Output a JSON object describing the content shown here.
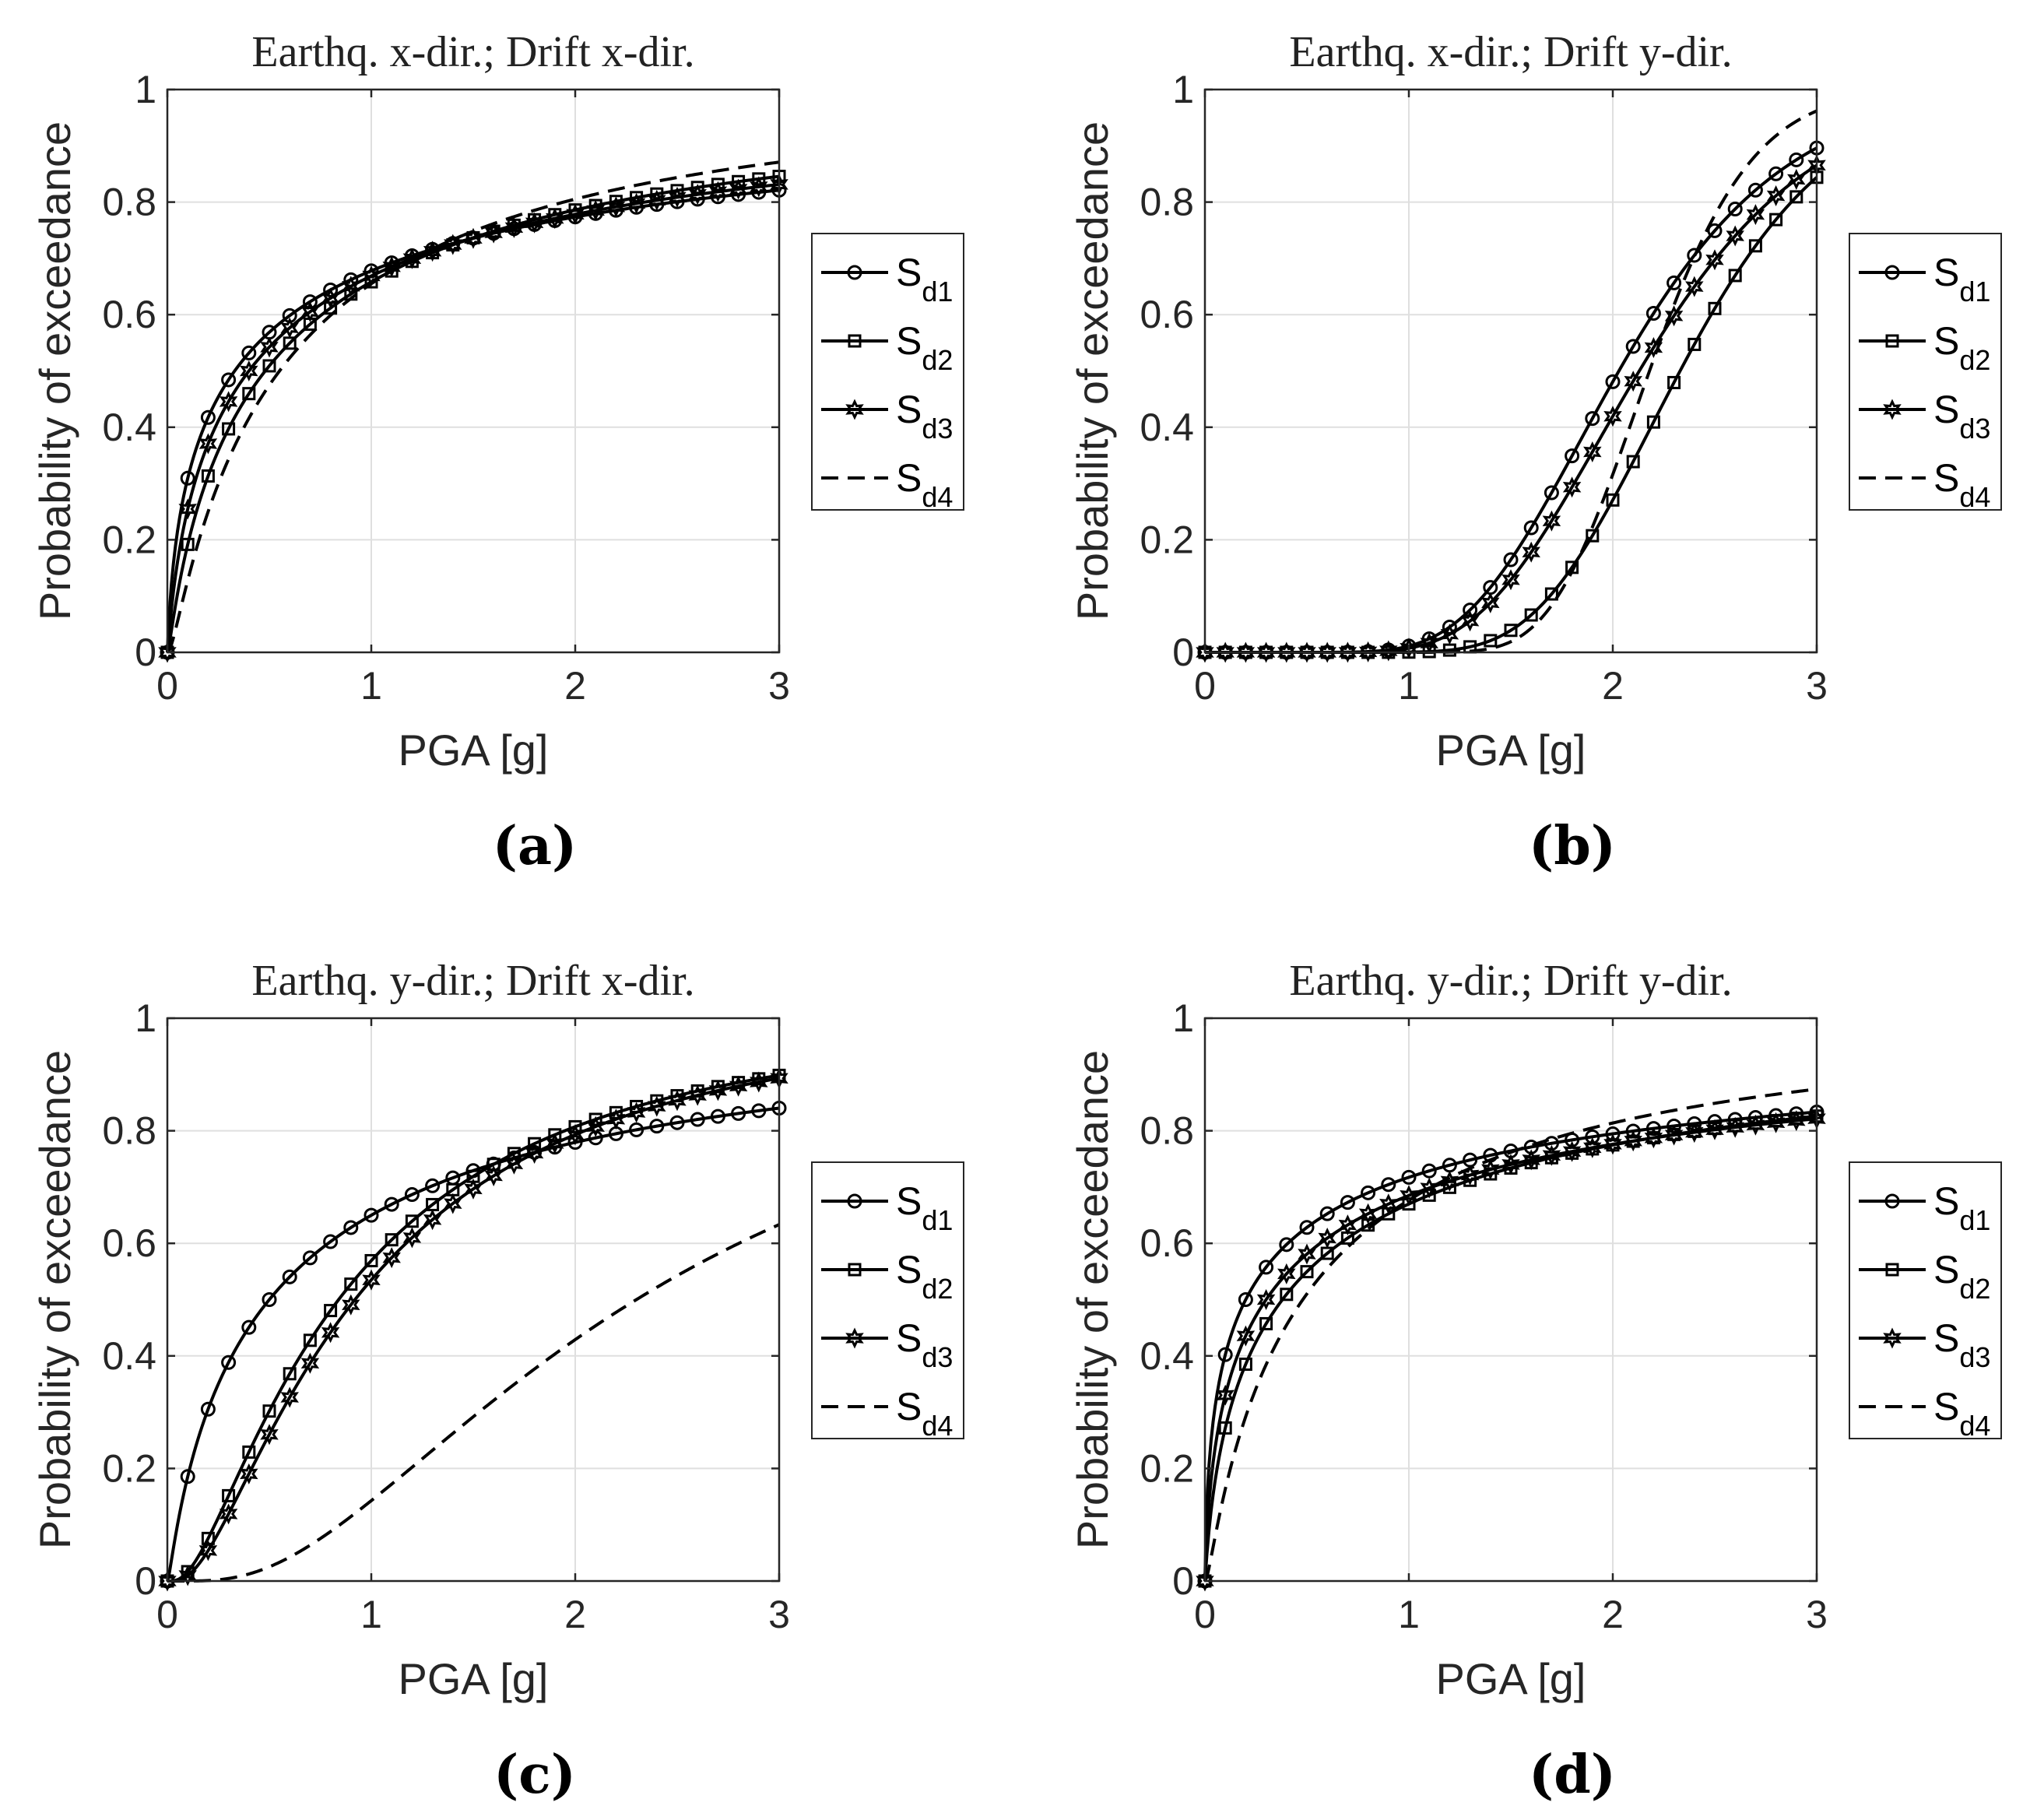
{
  "figure": {
    "panel_captions": [
      "(a)",
      "(b)",
      "(c)",
      "(d)"
    ]
  },
  "chart_data": [
    {
      "type": "line",
      "panel": "(a)",
      "title": "Earthq. x-dir.; Drift x-dir.",
      "xlabel": "PGA [g]",
      "ylabel": "Probability of exceedance",
      "xlim": [
        0,
        3
      ],
      "ylim": [
        0,
        1
      ],
      "xticks": [
        0,
        1,
        2,
        3
      ],
      "yticks": [
        0,
        0.2,
        0.4,
        0.6,
        0.8,
        1
      ],
      "xtick_labels": [
        "0",
        "1",
        "2",
        "3"
      ],
      "ytick_labels": [
        "0",
        "0.2",
        "0.4",
        "0.6",
        "0.8",
        "1"
      ],
      "grid": true,
      "legend_position": "right-outside",
      "series": [
        {
          "name": "S",
          "sub": "d1",
          "marker": "circle",
          "dash": "solid",
          "model": {
            "kind": "lognormal",
            "median": 0.33,
            "beta": 2.4
          }
        },
        {
          "name": "S",
          "sub": "d2",
          "marker": "square",
          "dash": "solid",
          "model": {
            "kind": "lognormal",
            "median": 0.48,
            "beta": 1.8
          }
        },
        {
          "name": "S",
          "sub": "d3",
          "marker": "hexagram",
          "dash": "solid",
          "model": {
            "kind": "lognormal",
            "median": 0.4,
            "beta": 2.1
          }
        },
        {
          "name": "S",
          "sub": "d4",
          "marker": "none",
          "dash": "dashed",
          "model": {
            "kind": "lognormal",
            "median": 0.55,
            "beta": 1.5
          }
        }
      ]
    },
    {
      "type": "line",
      "panel": "(b)",
      "title": "Earthq. x-dir.; Drift y-dir.",
      "xlabel": "PGA [g]",
      "ylabel": "Probability of exceedance",
      "xlim": [
        0,
        3
      ],
      "ylim": [
        0,
        1
      ],
      "xticks": [
        0,
        1,
        2,
        3
      ],
      "yticks": [
        0,
        0.2,
        0.4,
        0.6,
        0.8,
        1
      ],
      "xtick_labels": [
        "0",
        "1",
        "2",
        "3"
      ],
      "ytick_labels": [
        "0",
        "0.2",
        "0.4",
        "0.6",
        "0.8",
        "1"
      ],
      "grid": true,
      "legend_position": "right-outside",
      "series": [
        {
          "name": "S",
          "sub": "d1",
          "marker": "circle",
          "dash": "solid",
          "model": {
            "kind": "lognormal",
            "median": 2.03,
            "beta": 0.31
          }
        },
        {
          "name": "S",
          "sub": "d2",
          "marker": "square",
          "dash": "solid",
          "model": {
            "kind": "lognormal",
            "median": 2.33,
            "beta": 0.25
          }
        },
        {
          "name": "S",
          "sub": "d3",
          "marker": "hexagram",
          "dash": "solid",
          "model": {
            "kind": "lognormal",
            "median": 2.13,
            "beta": 0.31
          }
        },
        {
          "name": "S",
          "sub": "d4",
          "marker": "none",
          "dash": "dashed",
          "model": {
            "kind": "lognormal",
            "median": 2.18,
            "beta": 0.18
          }
        }
      ]
    },
    {
      "type": "line",
      "panel": "(c)",
      "title": "Earthq. y-dir.; Drift x-dir.",
      "xlabel": "PGA [g]",
      "ylabel": "Probability of exceedance",
      "xlim": [
        0,
        3
      ],
      "ylim": [
        0,
        1
      ],
      "xticks": [
        0,
        1,
        2,
        3
      ],
      "yticks": [
        0,
        0.2,
        0.4,
        0.6,
        0.8,
        1
      ],
      "xtick_labels": [
        "0",
        "1",
        "2",
        "3"
      ],
      "ytick_labels": [
        "0",
        "0.2",
        "0.4",
        "0.6",
        "0.8",
        "1"
      ],
      "grid": true,
      "legend_position": "right-outside",
      "series": [
        {
          "name": "S",
          "sub": "d1",
          "marker": "circle",
          "dash": "solid",
          "model": {
            "kind": "lognormal",
            "median": 0.5,
            "beta": 1.8
          }
        },
        {
          "name": "S",
          "sub": "d2",
          "marker": "square",
          "dash": "solid",
          "model": {
            "kind": "lognormal",
            "median": 0.84,
            "beta": 1.0
          }
        },
        {
          "name": "S",
          "sub": "d3",
          "marker": "hexagram",
          "dash": "solid",
          "model": {
            "kind": "lognormal",
            "median": 0.92,
            "beta": 0.95
          }
        },
        {
          "name": "S",
          "sub": "d4",
          "marker": "none",
          "dash": "dashed",
          "model": {
            "kind": "lognormal",
            "median": 2.3,
            "beta": 0.78
          }
        }
      ]
    },
    {
      "type": "line",
      "panel": "(d)",
      "title": "Earthq. y-dir.; Drift y-dir.",
      "xlabel": "PGA [g]",
      "ylabel": "Probability of exceedance",
      "xlim": [
        0,
        3
      ],
      "ylim": [
        0,
        1
      ],
      "xticks": [
        0,
        1,
        2,
        3
      ],
      "yticks": [
        0,
        0.2,
        0.4,
        0.6,
        0.8,
        1
      ],
      "xtick_labels": [
        "0",
        "1",
        "2",
        "3"
      ],
      "ytick_labels": [
        "0",
        "0.2",
        "0.4",
        "0.6",
        "0.8",
        "1"
      ],
      "grid": true,
      "legend_position": "right-outside",
      "series": [
        {
          "name": "S",
          "sub": "d1",
          "marker": "circle",
          "dash": "solid",
          "model": {
            "kind": "lognormal",
            "median": 0.2,
            "beta": 2.8
          }
        },
        {
          "name": "S",
          "sub": "d2",
          "marker": "square",
          "dash": "solid",
          "model": {
            "kind": "lognormal",
            "median": 0.38,
            "beta": 2.2
          }
        },
        {
          "name": "S",
          "sub": "d3",
          "marker": "hexagram",
          "dash": "solid",
          "model": {
            "kind": "lognormal",
            "median": 0.3,
            "beta": 2.5
          }
        },
        {
          "name": "S",
          "sub": "d4",
          "marker": "none",
          "dash": "dashed",
          "model": {
            "kind": "lognormal",
            "median": 0.48,
            "beta": 1.6
          }
        }
      ]
    }
  ]
}
